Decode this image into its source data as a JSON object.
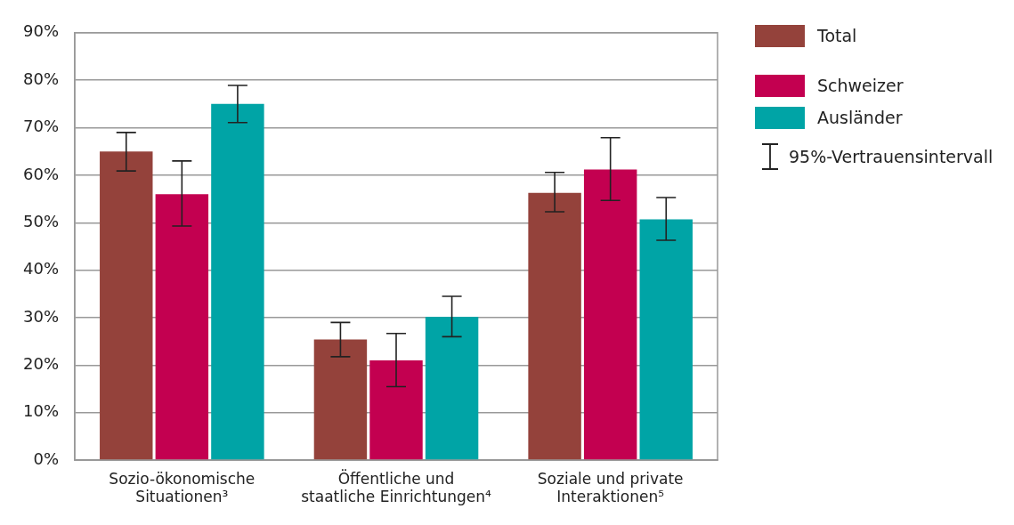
{
  "chart_data": {
    "type": "bar",
    "categories": [
      "Sozio-ökonomische Situationen³",
      "Öffentliche und staatliche Einrichtungen⁴",
      "Soziale und private Interaktionen⁵"
    ],
    "series": [
      {
        "name": "Total",
        "color": "#94423b",
        "values": [
          65,
          25.4,
          56.3
        ],
        "errors": [
          [
            60.9,
            69
          ],
          [
            21.8,
            29
          ],
          [
            52.3,
            60.6
          ]
        ]
      },
      {
        "name": "Schweizer",
        "color": "#c30050",
        "values": [
          56,
          21,
          61.2
        ],
        "errors": [
          [
            49.3,
            63
          ],
          [
            15.5,
            26.7
          ],
          [
            54.7,
            67.9
          ]
        ]
      },
      {
        "name": "Ausländer",
        "color": "#00a4a6",
        "values": [
          75,
          30.2,
          50.7
        ],
        "errors": [
          [
            71.1,
            78.9
          ],
          [
            26,
            34.5
          ],
          [
            46.3,
            55.3
          ]
        ]
      }
    ],
    "ylim": [
      0,
      90
    ],
    "yticks": [
      {
        "value": 0,
        "label": "0%"
      },
      {
        "value": 10,
        "label": "10%"
      },
      {
        "value": 20,
        "label": "20%"
      },
      {
        "value": 30,
        "label": "30%"
      },
      {
        "value": 40,
        "label": "40%"
      },
      {
        "value": 50,
        "label": "50%"
      },
      {
        "value": 60,
        "label": "60%"
      },
      {
        "value": 70,
        "label": "70%"
      },
      {
        "value": 80,
        "label": "80%"
      },
      {
        "value": 90,
        "label": "90%"
      }
    ],
    "grid": "y",
    "legend": "right",
    "annotations": [
      "95%-Vertrauensintervall"
    ]
  }
}
